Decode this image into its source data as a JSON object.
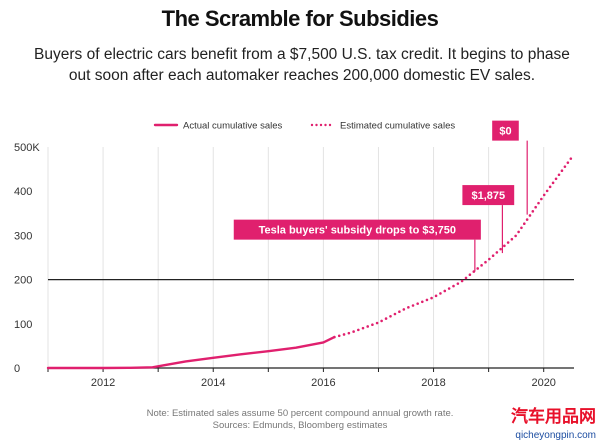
{
  "title": "The Scramble for Subsidies",
  "subtitle": "Buyers of electric cars benefit from a $7,500 U.S. tax credit. It begins to phase out soon after each automaker reaches 200,000 domestic EV sales.",
  "note_lines": [
    "Note: Estimated sales assume 50 percent compound annual growth rate.",
    "Sources: Edmunds, Bloomberg estimates"
  ],
  "watermark": {
    "brand": "汽车用品网",
    "url": "qicheyongpin.com"
  },
  "colors": {
    "accent": "#e0206e",
    "axis": "#222222",
    "grid": "#e3e3e3",
    "label_text": "#ffffff"
  },
  "chart_data": {
    "type": "line",
    "title": "",
    "xlabel": "",
    "ylabel": "",
    "xlim": [
      2011.0,
      2020.55
    ],
    "ylim": [
      0,
      500
    ],
    "x_ticks": [
      2012,
      2014,
      2016,
      2018,
      2020
    ],
    "x_tick_labels": [
      "2012",
      "2014",
      "2016",
      "2018",
      "2020"
    ],
    "y_ticks": [
      0,
      100,
      200,
      300,
      400,
      500
    ],
    "y_tick_labels": [
      "0",
      "100",
      "200",
      "300",
      "400",
      "500K"
    ],
    "grid": "vertical",
    "threshold_line": {
      "y": 200
    },
    "legend": {
      "placement": "top-center",
      "items": [
        {
          "label": "Actual cumulative sales",
          "style": "solid"
        },
        {
          "label": "Estimated cumulative sales",
          "style": "dotted"
        }
      ]
    },
    "series": [
      {
        "name": "Actual cumulative sales",
        "style": "solid",
        "points": [
          [
            2011.0,
            0
          ],
          [
            2012.0,
            0
          ],
          [
            2012.5,
            0.5
          ],
          [
            2012.9,
            1.5
          ],
          [
            2013.1,
            6
          ],
          [
            2013.5,
            15
          ],
          [
            2014.0,
            23
          ],
          [
            2014.5,
            31
          ],
          [
            2015.0,
            38
          ],
          [
            2015.5,
            46
          ],
          [
            2016.0,
            58
          ],
          [
            2016.2,
            70
          ]
        ]
      },
      {
        "name": "Estimated cumulative sales",
        "style": "dotted",
        "points": [
          [
            2016.2,
            70
          ],
          [
            2016.5,
            80
          ],
          [
            2017.0,
            103
          ],
          [
            2017.5,
            135
          ],
          [
            2018.0,
            160
          ],
          [
            2018.5,
            195
          ],
          [
            2019.0,
            245
          ],
          [
            2019.5,
            300
          ],
          [
            2020.0,
            390
          ],
          [
            2020.5,
            475
          ]
        ]
      }
    ],
    "annotations": [
      {
        "text": "Tesla buyers' subsidy drops to $3,750",
        "x": 2018.75,
        "y": 218
      },
      {
        "text": "$1,875",
        "x": 2019.25,
        "y": 260
      },
      {
        "text": "$0",
        "x": 2019.7,
        "y": 347
      }
    ]
  }
}
